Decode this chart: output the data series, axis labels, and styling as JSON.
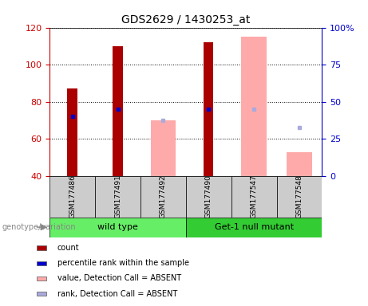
{
  "title": "GDS2629 / 1430253_at",
  "samples": [
    "GSM177486",
    "GSM177491",
    "GSM177492",
    "GSM177490",
    "GSM177547",
    "GSM177548"
  ],
  "groups": [
    {
      "label": "wild type",
      "color": "#66ee66",
      "start": 0,
      "end": 3
    },
    {
      "label": "Get-1 null mutant",
      "color": "#33cc33",
      "start": 3,
      "end": 6
    }
  ],
  "count_values": [
    87,
    110,
    null,
    112,
    null,
    null
  ],
  "percentile_values": [
    72,
    76,
    null,
    76,
    null,
    null
  ],
  "absent_value_values": [
    null,
    null,
    70,
    null,
    115,
    53
  ],
  "absent_rank_values": [
    null,
    null,
    70,
    null,
    76,
    66
  ],
  "ymin": 40,
  "ymax": 120,
  "yticks_left": [
    40,
    60,
    80,
    100,
    120
  ],
  "yticks_right_vals": [
    0,
    25,
    50,
    75,
    100
  ],
  "yticks_right_labels": [
    "0",
    "25",
    "50",
    "75",
    "100%"
  ],
  "count_color": "#aa0000",
  "percentile_color": "#0000cc",
  "absent_value_color": "#ffaaaa",
  "absent_rank_color": "#aaaadd",
  "label_area_bg": "#cccccc",
  "legend_items": [
    {
      "label": "count",
      "color": "#aa0000"
    },
    {
      "label": "percentile rank within the sample",
      "color": "#0000cc"
    },
    {
      "label": "value, Detection Call = ABSENT",
      "color": "#ffaaaa"
    },
    {
      "label": "rank, Detection Call = ABSENT",
      "color": "#aaaadd"
    }
  ],
  "genotype_label": "genotype/variation",
  "left_axis_color": "#cc0000",
  "right_axis_color": "#0000cc"
}
